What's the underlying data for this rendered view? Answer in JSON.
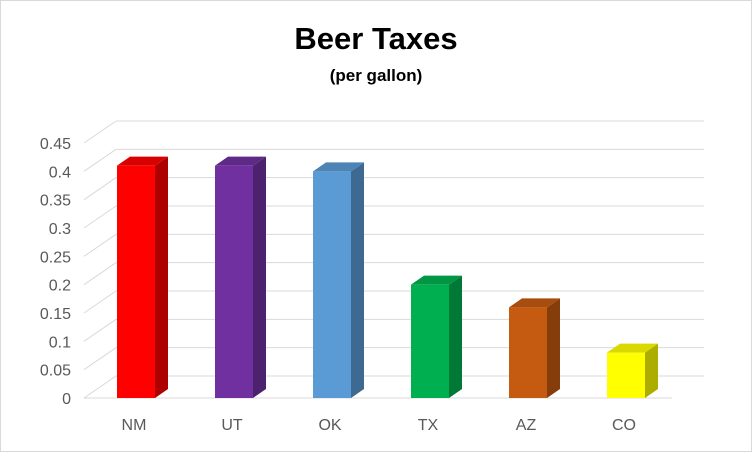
{
  "chart_data": {
    "type": "bar",
    "title": "Beer Taxes",
    "subtitle": "(per gallon)",
    "xlabel": "",
    "ylabel": "",
    "categories": [
      "NM",
      "UT",
      "OK",
      "TX",
      "AZ",
      "CO"
    ],
    "values": [
      0.41,
      0.41,
      0.4,
      0.2,
      0.16,
      0.08
    ],
    "colors": [
      "#ff0000",
      "#7030a0",
      "#5b9bd5",
      "#00b050",
      "#c55a11",
      "#ffff00"
    ],
    "yticks": [
      "0",
      "0.05",
      "0.1",
      "0.15",
      "0.2",
      "0.25",
      "0.3",
      "0.35",
      "0.4",
      "0.45"
    ],
    "ylim": [
      0,
      0.45
    ],
    "grid": true,
    "legend": "none"
  }
}
